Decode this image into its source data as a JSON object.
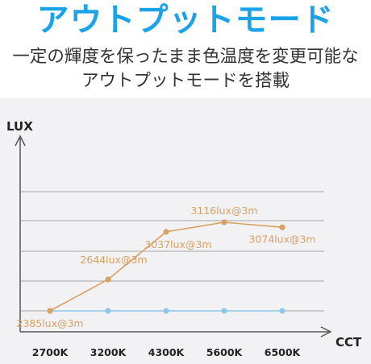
{
  "header": {
    "title": "アウトプットモード",
    "subtitle_line1": "一定の輝度を保ったまま色温度を変更可能な",
    "subtitle_line2": "アウトプットモードを搭載"
  },
  "chart_data": {
    "type": "line",
    "xlabel": "CCT",
    "ylabel": "LUX",
    "categories": [
      "2700K",
      "3200K",
      "4300K",
      "5600K",
      "6500K"
    ],
    "series": [
      {
        "color": "#d9a063",
        "values": [
          2385,
          2644,
          3037,
          3116,
          3074
        ],
        "labels": [
          "2385lux@3m",
          "2644lux@3m",
          "3037lux@3m",
          "3116lux@3m",
          "3074lux@3m"
        ]
      },
      {
        "color": "#8fc8ea",
        "values": [
          2385,
          2385,
          2385,
          2385,
          2385
        ]
      }
    ],
    "ylim": [
      2385,
      3116
    ],
    "grid": true,
    "colors": {
      "axis": "#555555",
      "grid": "#a5a5a5",
      "label": "#d9a063"
    }
  }
}
